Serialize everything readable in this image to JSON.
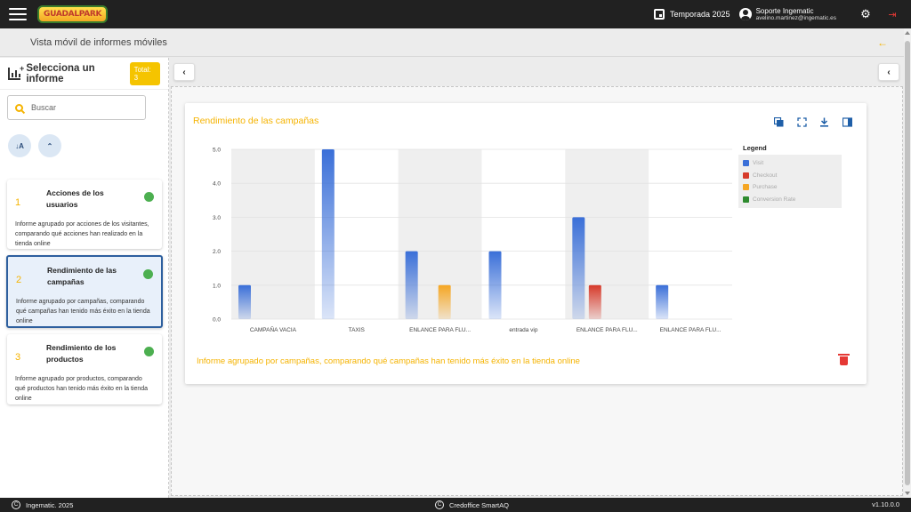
{
  "topbar": {
    "logo_text": "GUADALPARK",
    "season": "Temporada 2025",
    "user_name": "Soporte Ingematic",
    "user_email": "avelino.martinez@ingematic.es"
  },
  "subheader": {
    "title": "Vista móvil de informes móviles"
  },
  "sidebar": {
    "title": "Selecciona un informe",
    "total_badge": "Total: 3",
    "search_placeholder": "Buscar",
    "sort_az_label": "↓A",
    "reports": [
      {
        "number": "1",
        "title": "Acciones de los usuarios",
        "description": "Informe agrupado por acciones de los visitantes, comparando qué acciones han realizado en la tienda online",
        "status": "active"
      },
      {
        "number": "2",
        "title": "Rendimiento de las campañas",
        "description": "Informe agrupado por campañas, comparando qué campañas han tenido más éxito en la tienda online",
        "status": "active",
        "selected": true
      },
      {
        "number": "3",
        "title": "Rendimiento de los productos",
        "description": "Informe agrupado por productos, comparando qué productos han tenido más éxito en la tienda online",
        "status": "active"
      }
    ]
  },
  "report": {
    "title": "Rendimiento de las campañas",
    "description": "Informe agrupado por campañas, comparando qué campañas han tenido más éxito en la tienda online"
  },
  "chart_data": {
    "type": "bar",
    "categories": [
      "CAMPAÑA VACIA",
      "TAXIS",
      "ENLANCE PARA FLU...",
      "entrada vip",
      "ENLANCE PARA FLU...",
      "ENLANCE PARA FLU..."
    ],
    "series": [
      {
        "name": "Visit",
        "color": "#3a6fd8",
        "values": [
          1,
          5,
          2,
          2,
          3,
          1
        ]
      },
      {
        "name": "Checkout",
        "color": "#d63a2a",
        "values": [
          0,
          0,
          0,
          0,
          1,
          0
        ]
      },
      {
        "name": "Purchase",
        "color": "#f5a623",
        "values": [
          0,
          0,
          1,
          0,
          0,
          0
        ]
      },
      {
        "name": "Conversion Rate",
        "color": "#2e8b2e",
        "values": [
          0,
          0,
          0,
          0,
          0,
          0
        ]
      }
    ],
    "y_ticks": [
      "0.0",
      "1.0",
      "2.0",
      "3.0",
      "4.0",
      "5.0"
    ],
    "ylim": [
      0,
      5
    ],
    "legend_title": "Legend",
    "legend_position": "right",
    "grid": true
  },
  "footer": {
    "left": "Ingematic. 2025",
    "center": "Credoffice SmartAQ",
    "version": "v1.10.0.0"
  }
}
